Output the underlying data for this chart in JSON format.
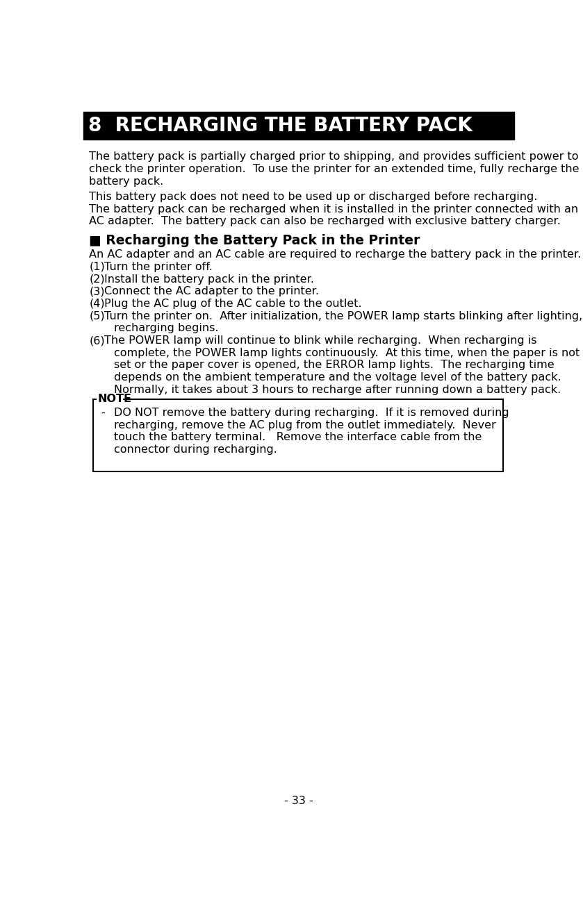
{
  "title": "8  RECHARGING THE BATTERY PACK",
  "title_bg": "#000000",
  "title_fg": "#ffffff",
  "body_fg": "#000000",
  "bg_color": "#ffffff",
  "page_number": "- 33 -",
  "section_heading": "■ Recharging the Battery Pack in the Printer",
  "para1_lines": [
    "The battery pack is partially charged prior to shipping, and provides sufficient power to",
    "check the printer operation.  To use the printer for an extended time, fully recharge the",
    "battery pack."
  ],
  "para2_lines": [
    "This battery pack does not need to be used up or discharged before recharging.",
    "The battery pack can be recharged when it is installed in the printer connected with an",
    "AC adapter.  The battery pack can also be recharged with exclusive battery charger."
  ],
  "intro_line": "An AC adapter and an AC cable are required to recharge the battery pack in the printer.",
  "steps": [
    {
      "num": "(1)",
      "text": "Turn the printer off.",
      "cont": []
    },
    {
      "num": "(2)",
      "text": "Install the battery pack in the printer.",
      "cont": []
    },
    {
      "num": "(3)",
      "text": "Connect the AC adapter to the printer.",
      "cont": []
    },
    {
      "num": "(4)",
      "text": "Plug the AC plug of the AC cable to the outlet.",
      "cont": []
    },
    {
      "num": "(5)",
      "text": "Turn the printer on.  After initialization, the POWER lamp starts blinking after lighting,",
      "cont": [
        "recharging begins."
      ]
    },
    {
      "num": "(6)",
      "text": "The POWER lamp will continue to blink while recharging.  When recharging is",
      "cont": [
        "complete, the POWER lamp lights continuously.  At this time, when the paper is not",
        "set or the paper cover is opened, the ERROR lamp lights.  The recharging time",
        "depends on the ambient temperature and the voltage level of the battery pack.",
        "Normally, it takes about 3 hours to recharge after running down a battery pack."
      ]
    }
  ],
  "note_label": "NOTE",
  "note_lines": [
    "DO NOT remove the battery during recharging.  If it is removed during",
    "recharging, remove the AC plug from the outlet immediately.  Never",
    "touch the battery terminal.   Remove the interface cable from the",
    "connector during recharging."
  ]
}
